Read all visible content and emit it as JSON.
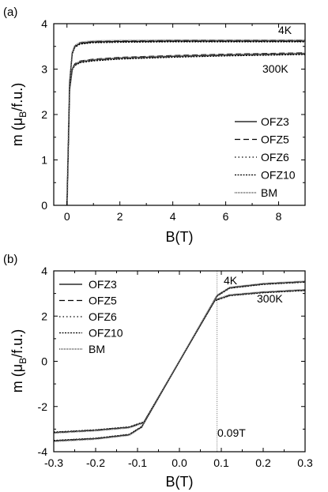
{
  "chart_data": [
    {
      "panel_label": "(a)",
      "type": "line",
      "xlabel": "B(T)",
      "ylabel": "m (μB/f.u.)",
      "ylabel_parts": {
        "pre": "m (",
        "mu": "μ",
        "sub": "B",
        "post": "/f.u.)"
      },
      "xlim": [
        -0.5,
        9
      ],
      "ylim": [
        0,
        4
      ],
      "xticks": [
        0,
        2,
        4,
        6,
        8
      ],
      "yticks": [
        0,
        1,
        2,
        3,
        4
      ],
      "grid": false,
      "legend_placement": "lower-right",
      "legend": [
        "OFZ3",
        "OFZ5",
        "OFZ6",
        "OFZ10",
        "BM"
      ],
      "annotations": [
        "4K",
        "300K"
      ],
      "series": [
        {
          "name": "OFZ3",
          "temperature": "4K",
          "x": [
            0,
            0.05,
            0.1,
            0.2,
            0.3,
            0.5,
            1,
            2,
            4,
            6,
            9
          ],
          "y": [
            0,
            1.3,
            2.7,
            3.35,
            3.5,
            3.57,
            3.6,
            3.61,
            3.62,
            3.62,
            3.62
          ]
        },
        {
          "name": "OFZ5",
          "temperature": "4K",
          "x": [
            0,
            0.05,
            0.1,
            0.2,
            0.3,
            0.5,
            1,
            2,
            4,
            6,
            9
          ],
          "y": [
            0,
            1.3,
            2.7,
            3.36,
            3.51,
            3.58,
            3.61,
            3.62,
            3.63,
            3.63,
            3.63
          ]
        },
        {
          "name": "OFZ6",
          "temperature": "4K",
          "x": [
            0,
            0.05,
            0.1,
            0.2,
            0.3,
            0.5,
            1,
            2,
            4,
            6,
            9
          ],
          "y": [
            0,
            1.3,
            2.7,
            3.34,
            3.49,
            3.56,
            3.59,
            3.6,
            3.61,
            3.61,
            3.61
          ]
        },
        {
          "name": "OFZ10",
          "temperature": "4K",
          "x": [
            0,
            0.05,
            0.1,
            0.2,
            0.3,
            0.5,
            1,
            2,
            4,
            6,
            9
          ],
          "y": [
            0,
            1.3,
            2.7,
            3.33,
            3.48,
            3.55,
            3.58,
            3.59,
            3.6,
            3.6,
            3.6
          ]
        },
        {
          "name": "BM",
          "temperature": "4K",
          "x": [
            0,
            0.05,
            0.1,
            0.2,
            0.3,
            0.5,
            1,
            2,
            4,
            6,
            9
          ],
          "y": [
            0,
            1.3,
            2.7,
            3.37,
            3.52,
            3.59,
            3.62,
            3.63,
            3.64,
            3.64,
            3.64
          ]
        },
        {
          "name": "OFZ3",
          "temperature": "300K",
          "x": [
            0,
            0.05,
            0.1,
            0.2,
            0.3,
            0.5,
            1,
            2,
            4,
            6,
            9
          ],
          "y": [
            0,
            1.25,
            2.55,
            3.0,
            3.1,
            3.16,
            3.2,
            3.24,
            3.28,
            3.31,
            3.34
          ]
        },
        {
          "name": "OFZ5",
          "temperature": "300K",
          "x": [
            0,
            0.05,
            0.1,
            0.2,
            0.3,
            0.5,
            1,
            2,
            4,
            6,
            9
          ],
          "y": [
            0,
            1.25,
            2.55,
            3.02,
            3.12,
            3.18,
            3.22,
            3.26,
            3.3,
            3.33,
            3.36
          ]
        },
        {
          "name": "OFZ6",
          "temperature": "300K",
          "x": [
            0,
            0.05,
            0.1,
            0.2,
            0.3,
            0.5,
            1,
            2,
            4,
            6,
            9
          ],
          "y": [
            0,
            1.25,
            2.55,
            2.99,
            3.09,
            3.15,
            3.19,
            3.23,
            3.27,
            3.3,
            3.33
          ]
        },
        {
          "name": "OFZ10",
          "temperature": "300K",
          "x": [
            0,
            0.05,
            0.1,
            0.2,
            0.3,
            0.5,
            1,
            2,
            4,
            6,
            9
          ],
          "y": [
            0,
            1.25,
            2.55,
            2.98,
            3.08,
            3.14,
            3.18,
            3.22,
            3.26,
            3.29,
            3.32
          ]
        },
        {
          "name": "BM",
          "temperature": "300K",
          "x": [
            0,
            0.05,
            0.1,
            0.2,
            0.3,
            0.5,
            1,
            2,
            4,
            6,
            9
          ],
          "y": [
            0,
            1.25,
            2.55,
            3.01,
            3.11,
            3.17,
            3.21,
            3.25,
            3.29,
            3.32,
            3.35
          ]
        }
      ]
    },
    {
      "panel_label": "(b)",
      "type": "line",
      "xlabel": "B(T)",
      "ylabel": "m (μB/f.u.)",
      "ylabel_parts": {
        "pre": "m (",
        "mu": "μ",
        "sub": "B",
        "post": "/f.u.)"
      },
      "xlim": [
        -0.3,
        0.3
      ],
      "ylim": [
        -4,
        4
      ],
      "xticks": [
        -0.3,
        -0.2,
        -0.1,
        0.0,
        0.1,
        0.2,
        0.3
      ],
      "xtick_labels": [
        "-0.3",
        "-0.2",
        "-0.1",
        "0.0",
        "0.1",
        "0.2",
        "0.3"
      ],
      "yticks": [
        -4,
        -2,
        0,
        2,
        4
      ],
      "grid": false,
      "legend_placement": "upper-left",
      "legend": [
        "OFZ3",
        "OFZ5",
        "OFZ6",
        "OFZ10",
        "BM"
      ],
      "annotations": [
        "4K",
        "300K",
        "0.09T"
      ],
      "vline_x": 0.09,
      "series": [
        {
          "name": "OFZ3",
          "temperature": "4K",
          "x": [
            -0.3,
            -0.2,
            -0.12,
            -0.09,
            0.09,
            0.12,
            0.2,
            0.3
          ],
          "y": [
            -3.52,
            -3.42,
            -3.25,
            -2.9,
            2.9,
            3.25,
            3.42,
            3.52
          ]
        },
        {
          "name": "OFZ5",
          "temperature": "4K",
          "x": [
            -0.3,
            -0.2,
            -0.12,
            -0.09,
            0.09,
            0.12,
            0.2,
            0.3
          ],
          "y": [
            -3.53,
            -3.43,
            -3.26,
            -2.91,
            2.91,
            3.26,
            3.43,
            3.53
          ]
        },
        {
          "name": "OFZ6",
          "temperature": "4K",
          "x": [
            -0.3,
            -0.2,
            -0.12,
            -0.09,
            0.09,
            0.12,
            0.2,
            0.3
          ],
          "y": [
            -3.51,
            -3.41,
            -3.24,
            -2.89,
            2.89,
            3.24,
            3.41,
            3.51
          ]
        },
        {
          "name": "OFZ10",
          "temperature": "4K",
          "x": [
            -0.3,
            -0.2,
            -0.12,
            -0.09,
            0.09,
            0.12,
            0.2,
            0.3
          ],
          "y": [
            -3.5,
            -3.4,
            -3.23,
            -2.88,
            2.88,
            3.23,
            3.4,
            3.5
          ]
        },
        {
          "name": "BM",
          "temperature": "4K",
          "x": [
            -0.3,
            -0.2,
            -0.12,
            -0.09,
            0.09,
            0.12,
            0.2,
            0.3
          ],
          "y": [
            -3.54,
            -3.44,
            -3.27,
            -2.92,
            2.92,
            3.27,
            3.44,
            3.54
          ]
        },
        {
          "name": "OFZ3",
          "temperature": "300K",
          "x": [
            -0.3,
            -0.2,
            -0.12,
            -0.085,
            0.085,
            0.12,
            0.2,
            0.3
          ],
          "y": [
            -3.15,
            -3.05,
            -2.92,
            -2.7,
            2.7,
            2.92,
            3.05,
            3.15
          ]
        },
        {
          "name": "OFZ5",
          "temperature": "300K",
          "x": [
            -0.3,
            -0.2,
            -0.12,
            -0.085,
            0.085,
            0.12,
            0.2,
            0.3
          ],
          "y": [
            -3.16,
            -3.06,
            -2.93,
            -2.71,
            2.71,
            2.93,
            3.06,
            3.16
          ]
        },
        {
          "name": "OFZ6",
          "temperature": "300K",
          "x": [
            -0.3,
            -0.2,
            -0.12,
            -0.085,
            0.085,
            0.12,
            0.2,
            0.3
          ],
          "y": [
            -3.14,
            -3.04,
            -2.91,
            -2.69,
            2.69,
            2.91,
            3.04,
            3.14
          ]
        },
        {
          "name": "OFZ10",
          "temperature": "300K",
          "x": [
            -0.3,
            -0.2,
            -0.12,
            -0.085,
            0.085,
            0.12,
            0.2,
            0.3
          ],
          "y": [
            -3.13,
            -3.03,
            -2.9,
            -2.68,
            2.68,
            2.9,
            3.03,
            3.13
          ]
        },
        {
          "name": "BM",
          "temperature": "300K",
          "x": [
            -0.3,
            -0.2,
            -0.12,
            -0.085,
            0.085,
            0.12,
            0.2,
            0.3
          ],
          "y": [
            -3.17,
            -3.07,
            -2.94,
            -2.72,
            2.72,
            2.94,
            3.07,
            3.17
          ]
        }
      ]
    }
  ],
  "styles": {
    "OFZ3": {
      "color": "#000000",
      "dash": ""
    },
    "OFZ5": {
      "color": "#000000",
      "dash": "7 4"
    },
    "OFZ6": {
      "color": "#000000",
      "dash": "1.5 3"
    },
    "OFZ10": {
      "color": "#000000",
      "dash": "2 1.5"
    },
    "BM": {
      "color": "#7a7a7a",
      "dash": "1 1"
    }
  }
}
